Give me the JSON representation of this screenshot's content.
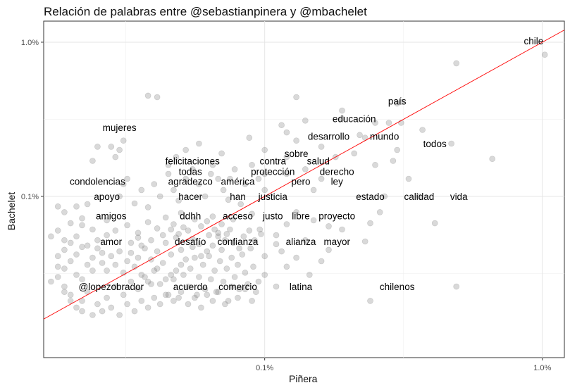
{
  "chart_data": {
    "type": "scatter",
    "title": "Relación de palabras entre @sebastianpinera y @mbachelet",
    "xlabel": "Piñera",
    "ylabel": "Bachelet",
    "x_scale": "log10",
    "y_scale": "log10",
    "xlim": [
      0.00016,
      0.012
    ],
    "ylim": [
      9e-05,
      0.0137
    ],
    "x_ticks": [
      {
        "value": 0.001,
        "label": "0.1%"
      },
      {
        "value": 0.01,
        "label": "1.0%"
      }
    ],
    "y_ticks": [
      {
        "value": 0.001,
        "label": "0.1%"
      },
      {
        "value": 0.01,
        "label": "1.0%"
      }
    ],
    "grid": true,
    "reference_line": {
      "type": "identity",
      "color": "#ff0000"
    },
    "point_color": "#808080",
    "labels": [
      {
        "text": "chile",
        "x": 0.0093,
        "y": 0.0102
      },
      {
        "text": "país",
        "x": 0.003,
        "y": 0.00415
      },
      {
        "text": "educación",
        "x": 0.0021,
        "y": 0.0032
      },
      {
        "text": "mujeres",
        "x": 0.0003,
        "y": 0.0028
      },
      {
        "text": "desarrollo",
        "x": 0.0017,
        "y": 0.00245
      },
      {
        "text": "mundo",
        "x": 0.0027,
        "y": 0.00245
      },
      {
        "text": "todos",
        "x": 0.0041,
        "y": 0.0022
      },
      {
        "text": "sobre",
        "x": 0.0013,
        "y": 0.0019
      },
      {
        "text": "felicitaciones",
        "x": 0.00055,
        "y": 0.0017
      },
      {
        "text": "contra",
        "x": 0.00107,
        "y": 0.0017
      },
      {
        "text": "salud",
        "x": 0.00156,
        "y": 0.0017
      },
      {
        "text": "todas",
        "x": 0.00054,
        "y": 0.00145
      },
      {
        "text": "protección",
        "x": 0.00107,
        "y": 0.00145
      },
      {
        "text": "derecho",
        "x": 0.00182,
        "y": 0.00145
      },
      {
        "text": "condolencias",
        "x": 0.00025,
        "y": 0.00125
      },
      {
        "text": "agradezco",
        "x": 0.00054,
        "y": 0.00125
      },
      {
        "text": "américa",
        "x": 0.0008,
        "y": 0.00125
      },
      {
        "text": "pero",
        "x": 0.00135,
        "y": 0.00125
      },
      {
        "text": "ley",
        "x": 0.00182,
        "y": 0.00125
      },
      {
        "text": "apoyo",
        "x": 0.00027,
        "y": 0.001
      },
      {
        "text": "hacer",
        "x": 0.00054,
        "y": 0.001
      },
      {
        "text": "han",
        "x": 0.0008,
        "y": 0.001
      },
      {
        "text": "justicia",
        "x": 0.00107,
        "y": 0.001
      },
      {
        "text": "estado",
        "x": 0.0024,
        "y": 0.001
      },
      {
        "text": "calidad",
        "x": 0.0036,
        "y": 0.001
      },
      {
        "text": "vida",
        "x": 0.005,
        "y": 0.001
      },
      {
        "text": "amigos",
        "x": 0.00028,
        "y": 0.00075
      },
      {
        "text": "ddhh",
        "x": 0.00054,
        "y": 0.00075
      },
      {
        "text": "acceso",
        "x": 0.0008,
        "y": 0.00075
      },
      {
        "text": "justo",
        "x": 0.00107,
        "y": 0.00075
      },
      {
        "text": "libre",
        "x": 0.00135,
        "y": 0.00075
      },
      {
        "text": "proyecto",
        "x": 0.00182,
        "y": 0.00075
      },
      {
        "text": "amor",
        "x": 0.00028,
        "y": 0.00051
      },
      {
        "text": "desafío",
        "x": 0.00054,
        "y": 0.00051
      },
      {
        "text": "confianza",
        "x": 0.0008,
        "y": 0.00051
      },
      {
        "text": "alianza",
        "x": 0.00135,
        "y": 0.00051
      },
      {
        "text": "mayor",
        "x": 0.00182,
        "y": 0.00051
      },
      {
        "text": "@lopezobrador",
        "x": 0.00028,
        "y": 0.00026
      },
      {
        "text": "acuerdo",
        "x": 0.00054,
        "y": 0.00026
      },
      {
        "text": "comercio",
        "x": 0.0008,
        "y": 0.00026
      },
      {
        "text": "latina",
        "x": 0.00135,
        "y": 0.00026
      },
      {
        "text": "chilenos",
        "x": 0.003,
        "y": 0.00026
      }
    ],
    "points": [
      [
        0.0102,
        0.0083
      ],
      [
        0.0049,
        0.0073
      ],
      [
        0.0066,
        0.00175
      ],
      [
        0.0041,
        0.00067
      ],
      [
        0.0047,
        0.0022
      ],
      [
        0.0049,
        0.00026
      ],
      [
        0.0024,
        0.00021
      ],
      [
        0.0031,
        0.0041
      ],
      [
        0.0031,
        0.003
      ],
      [
        0.003,
        0.004
      ],
      [
        0.0028,
        0.003
      ],
      [
        0.0022,
        0.0025
      ],
      [
        0.0025,
        0.003
      ],
      [
        0.0019,
        0.0036
      ],
      [
        0.0019,
        0.0032
      ],
      [
        0.0029,
        0.0017
      ],
      [
        0.003,
        0.002
      ],
      [
        0.0037,
        0.0027
      ],
      [
        0.0033,
        0.0013
      ],
      [
        0.0023,
        0.0024
      ],
      [
        0.0013,
        0.0044
      ],
      [
        0.0012,
        0.0026
      ],
      [
        0.0014,
        0.0031
      ],
      [
        0.00115,
        0.0029
      ],
      [
        0.0013,
        0.0023
      ],
      [
        0.0016,
        0.0021
      ],
      [
        0.0018,
        0.0018
      ],
      [
        0.0021,
        0.0019
      ],
      [
        0.0025,
        0.0016
      ],
      [
        0.0027,
        0.001
      ],
      [
        0.0026,
        0.00079
      ],
      [
        0.0036,
        0.001
      ],
      [
        0.0024,
        0.00067
      ],
      [
        0.0019,
        0.00061
      ],
      [
        0.0023,
        0.00051
      ],
      [
        0.0017,
        0.00064
      ],
      [
        0.0015,
        0.0007
      ],
      [
        0.0013,
        0.00079
      ],
      [
        0.0012,
        0.00066
      ],
      [
        0.0011,
        0.00056
      ],
      [
        0.0015,
        0.0011
      ],
      [
        0.0016,
        0.0013
      ],
      [
        0.0014,
        0.0015
      ],
      [
        0.0012,
        0.0014
      ],
      [
        0.001,
        0.0011
      ],
      [
        0.001,
        0.0014
      ],
      [
        0.00095,
        0.0013
      ],
      [
        0.0012,
        0.0018
      ],
      [
        0.001,
        0.002
      ],
      [
        0.00088,
        0.0024
      ],
      [
        0.0009,
        0.0016
      ],
      [
        0.00085,
        0.0012
      ],
      [
        0.00082,
        0.00089
      ],
      [
        0.0009,
        0.00077
      ],
      [
        0.00096,
        0.00061
      ],
      [
        0.00077,
        0.00071
      ],
      [
        0.00075,
        0.00061
      ],
      [
        0.00072,
        0.00052
      ],
      [
        0.00068,
        0.00055
      ],
      [
        0.00065,
        0.00048
      ],
      [
        0.00062,
        0.00044
      ],
      [
        0.00059,
        0.00041
      ],
      [
        0.00055,
        0.00047
      ],
      [
        0.00052,
        0.00039
      ],
      [
        0.0005,
        0.00036
      ],
      [
        0.00048,
        0.00033
      ],
      [
        0.00046,
        0.00031
      ],
      [
        0.00044,
        0.00029
      ],
      [
        0.00041,
        0.00034
      ],
      [
        0.00039,
        0.00027
      ],
      [
        0.00037,
        0.0003
      ],
      [
        0.00035,
        0.00025
      ],
      [
        0.00033,
        0.00028
      ],
      [
        0.00031,
        0.00023
      ],
      [
        0.00029,
        0.00026
      ],
      [
        0.00027,
        0.00022
      ],
      [
        0.00025,
        0.0002
      ],
      [
        0.00023,
        0.00024
      ],
      [
        0.00022,
        0.00021
      ],
      [
        0.00021,
        0.00019
      ],
      [
        0.0002,
        0.00023
      ],
      [
        0.00019,
        0.00026
      ],
      [
        0.00018,
        0.0003
      ],
      [
        0.00019,
        0.00034
      ],
      [
        0.0002,
        0.00038
      ],
      [
        0.00021,
        0.00042
      ],
      [
        0.00022,
        0.00047
      ],
      [
        0.00019,
        0.00052
      ],
      [
        0.00021,
        0.00055
      ],
      [
        0.00018,
        0.0006
      ],
      [
        0.0002,
        0.00067
      ],
      [
        0.00022,
        0.00072
      ],
      [
        0.00019,
        0.00079
      ],
      [
        0.00021,
        0.00086
      ],
      [
        0.00018,
        0.00086
      ],
      [
        0.00023,
        0.00089
      ],
      [
        0.00024,
        0.0004
      ],
      [
        0.00025,
        0.00046
      ],
      [
        0.00026,
        0.00037
      ],
      [
        0.00027,
        0.00033
      ],
      [
        0.00028,
        0.00041
      ],
      [
        0.00029,
        0.00036
      ],
      [
        0.0003,
        0.00044
      ],
      [
        0.00031,
        0.00032
      ],
      [
        0.00032,
        0.00038
      ],
      [
        0.00033,
        0.00043
      ],
      [
        0.00034,
        0.00035
      ],
      [
        0.00035,
        0.0004
      ],
      [
        0.00036,
        0.00031
      ],
      [
        0.00037,
        0.00046
      ],
      [
        0.00038,
        0.00028
      ],
      [
        0.00039,
        0.00039
      ],
      [
        0.0004,
        0.00033
      ],
      [
        0.00041,
        0.00044
      ],
      [
        0.00042,
        0.00027
      ],
      [
        0.00043,
        0.00037
      ],
      [
        0.00044,
        0.0005
      ],
      [
        0.00045,
        0.00023
      ],
      [
        0.00046,
        0.00042
      ],
      [
        0.00047,
        0.00029
      ],
      [
        0.00048,
        0.00054
      ],
      [
        0.00049,
        0.00022
      ],
      [
        0.0005,
        0.00045
      ],
      [
        0.00051,
        0.00031
      ],
      [
        0.00053,
        0.00026
      ],
      [
        0.00054,
        0.00034
      ],
      [
        0.00056,
        0.0004
      ],
      [
        0.00057,
        0.00023
      ],
      [
        0.00058,
        0.0003
      ],
      [
        0.0006,
        0.00036
      ],
      [
        0.00061,
        0.00025
      ],
      [
        0.00063,
        0.00041
      ],
      [
        0.00064,
        0.00029
      ],
      [
        0.00066,
        0.00033
      ],
      [
        0.00067,
        0.00024
      ],
      [
        0.00069,
        0.00038
      ],
      [
        0.0007,
        0.00045
      ],
      [
        0.00071,
        0.00028
      ],
      [
        0.00073,
        0.00034
      ],
      [
        0.00074,
        0.00021
      ],
      [
        0.00076,
        0.0004
      ],
      [
        0.00078,
        0.0003
      ],
      [
        0.0008,
        0.00036
      ],
      [
        0.00081,
        0.00025
      ],
      [
        0.00083,
        0.00042
      ],
      [
        0.00085,
        0.00032
      ],
      [
        0.00087,
        0.00027
      ],
      [
        0.00089,
        0.00046
      ],
      [
        0.00091,
        0.00035
      ],
      [
        0.00093,
        0.00024
      ],
      [
        0.0003,
        0.001
      ],
      [
        0.00031,
        0.0012
      ],
      [
        0.00032,
        0.0013
      ],
      [
        0.00034,
        0.0009
      ],
      [
        0.00036,
        0.0011
      ],
      [
        0.00038,
        0.00085
      ],
      [
        0.0004,
        0.0012
      ],
      [
        0.00042,
        0.001
      ],
      [
        0.00045,
        0.0014
      ],
      [
        0.00047,
        0.0011
      ],
      [
        0.00049,
        0.00094
      ],
      [
        0.00052,
        0.0013
      ],
      [
        0.00055,
        0.0015
      ],
      [
        0.00058,
        0.0012
      ],
      [
        0.00061,
        0.001
      ],
      [
        0.00064,
        0.0014
      ],
      [
        0.00068,
        0.0013
      ],
      [
        0.00071,
        0.0011
      ],
      [
        0.00074,
        0.00095
      ],
      [
        0.00078,
        0.0015
      ],
      [
        0.00029,
        0.0018
      ],
      [
        0.00028,
        0.0021
      ],
      [
        0.00031,
        0.0023
      ],
      [
        0.00025,
        0.0021
      ],
      [
        0.00024,
        0.0017
      ],
      [
        0.00041,
        0.0044
      ],
      [
        0.00038,
        0.0045
      ],
      [
        0.0003,
        0.002
      ],
      [
        0.00045,
        0.0016
      ],
      [
        0.00048,
        0.0018
      ],
      [
        0.00052,
        0.002
      ],
      [
        0.00058,
        0.0022
      ],
      [
        0.00065,
        0.0016
      ],
      [
        0.0007,
        0.0019
      ],
      [
        0.00075,
        0.0013
      ],
      [
        0.00027,
        0.0007
      ],
      [
        0.00029,
        0.0006
      ],
      [
        0.00032,
        0.00065
      ],
      [
        0.00035,
        0.00058
      ],
      [
        0.00038,
        0.00068
      ],
      [
        0.00041,
        0.00062
      ],
      [
        0.00044,
        0.00073
      ],
      [
        0.00047,
        0.00066
      ],
      [
        0.0005,
        0.00078
      ],
      [
        0.00053,
        0.0006
      ],
      [
        0.00056,
        0.00071
      ],
      [
        0.00059,
        0.00064
      ],
      [
        0.00062,
        0.00069
      ],
      [
        0.00065,
        0.00074
      ],
      [
        0.00068,
        0.00058
      ],
      [
        0.00019,
        0.00045
      ],
      [
        0.0002,
        0.0005
      ],
      [
        0.00018,
        0.00041
      ],
      [
        0.00017,
        0.00055
      ],
      [
        0.00018,
        0.00035
      ],
      [
        0.00017,
        0.00028
      ],
      [
        0.00019,
        0.00024
      ],
      [
        0.0002,
        0.00021
      ],
      [
        0.00022,
        0.00018
      ],
      [
        0.00024,
        0.00017
      ],
      [
        0.00026,
        0.00018
      ],
      [
        0.00028,
        0.00019
      ],
      [
        0.0003,
        0.00017
      ],
      [
        0.00032,
        0.0002
      ],
      [
        0.00034,
        0.00018
      ],
      [
        0.00036,
        0.00021
      ],
      [
        0.00038,
        0.00019
      ],
      [
        0.0004,
        0.00022
      ],
      [
        0.00042,
        0.0002
      ],
      [
        0.00044,
        0.00023
      ],
      [
        0.00047,
        0.00021
      ],
      [
        0.0005,
        0.00024
      ],
      [
        0.00053,
        0.0002
      ],
      [
        0.00056,
        0.00022
      ],
      [
        0.00059,
        0.00019
      ],
      [
        0.00062,
        0.00023
      ],
      [
        0.00065,
        0.00021
      ],
      [
        0.00068,
        0.00024
      ],
      [
        0.00072,
        0.0002
      ],
      [
        0.00076,
        0.00026
      ],
      [
        0.0008,
        0.00022
      ],
      [
        0.00085,
        0.00025
      ],
      [
        0.0009,
        0.00021
      ],
      [
        0.00095,
        0.00028
      ],
      [
        0.001,
        0.00031
      ],
      [
        0.0011,
        0.00026
      ],
      [
        0.0012,
        0.00035
      ],
      [
        0.00115,
        0.00044
      ],
      [
        0.0013,
        0.0004
      ],
      [
        0.00145,
        0.00031
      ],
      [
        0.0016,
        0.00038
      ],
      [
        0.0017,
        0.00045
      ],
      [
        0.0014,
        0.00052
      ],
      [
        0.0011,
        0.00049
      ],
      [
        0.001,
        0.00041
      ],
      [
        0.00021,
        0.00031
      ],
      [
        0.00023,
        0.00036
      ],
      [
        0.00022,
        0.00029
      ],
      [
        0.00024,
        0.00033
      ],
      [
        0.00026,
        0.00043
      ],
      [
        0.00023,
        0.00048
      ],
      [
        0.00025,
        0.00052
      ],
      [
        0.00027,
        0.00056
      ],
      [
        0.00024,
        0.00061
      ],
      [
        0.00022,
        0.00065
      ],
      [
        0.00033,
        0.0005
      ],
      [
        0.00035,
        0.00054
      ],
      [
        0.00036,
        0.00048
      ],
      [
        0.00039,
        0.00052
      ],
      [
        0.00043,
        0.00056
      ],
      [
        0.00046,
        0.00061
      ],
      [
        0.00049,
        0.00057
      ],
      [
        0.00051,
        0.00063
      ],
      [
        0.00055,
        0.00053
      ],
      [
        0.00058,
        0.00049
      ],
      [
        0.00063,
        0.00056
      ],
      [
        0.00066,
        0.00061
      ],
      [
        0.0007,
        0.00066
      ],
      [
        0.00073,
        0.00057
      ],
      [
        0.00077,
        0.0005
      ],
      [
        0.00081,
        0.00046
      ],
      [
        0.00084,
        0.00055
      ],
      [
        0.00088,
        0.0006
      ],
      [
        0.00092,
        0.00052
      ],
      [
        0.00097,
        0.00057
      ]
    ]
  }
}
